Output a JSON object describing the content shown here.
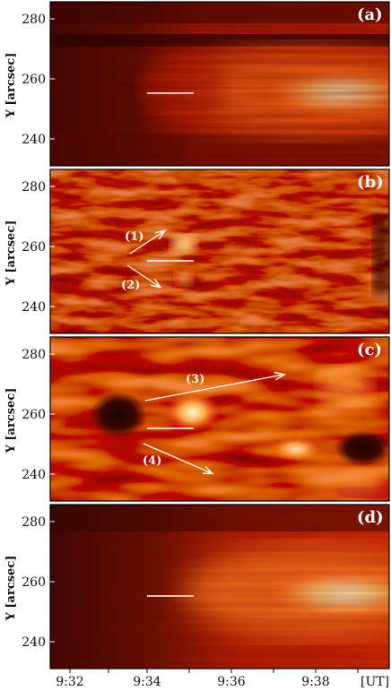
{
  "figure": {
    "ylabel": "Y [arcsec]",
    "y_ticks": [
      "280",
      "260",
      "240"
    ],
    "x_ticks": [
      "9:32",
      "9:34",
      "9:36",
      "9:38"
    ],
    "x_unit": "[UT]",
    "panels": [
      {
        "tag": "(a)",
        "annotations": []
      },
      {
        "tag": "(b)",
        "annotations": [
          "(1)",
          "(2)"
        ]
      },
      {
        "tag": "(c)",
        "annotations": [
          "(3)",
          "(4)"
        ]
      },
      {
        "tag": "(d)",
        "annotations": []
      }
    ]
  },
  "colors": {
    "dark": "#2a0600",
    "mid": "#b81e00",
    "bright": "#ff5a10",
    "highlight": "#fff1c8"
  }
}
